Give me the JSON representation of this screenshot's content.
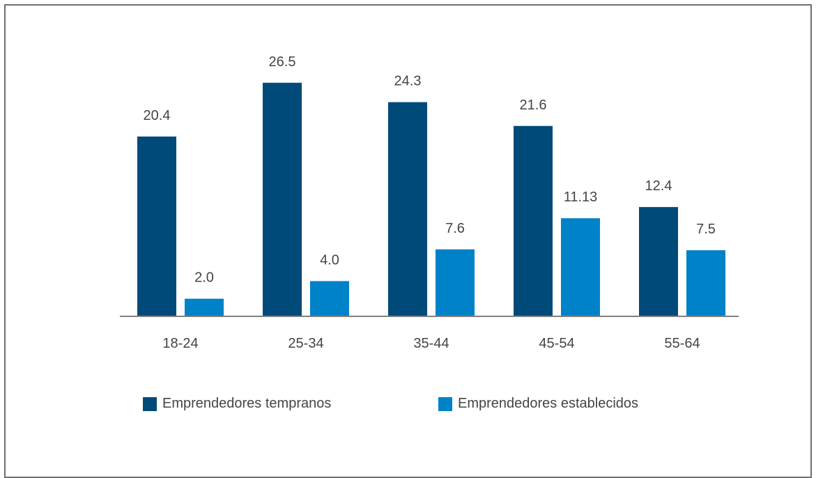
{
  "chart_data": {
    "type": "bar",
    "categories": [
      "18-24",
      "25-34",
      "35-44",
      "45-54",
      "55-64"
    ],
    "series": [
      {
        "name": "Emprendedores tempranos",
        "color": "#004a7a",
        "values": [
          20.4,
          26.5,
          24.3,
          21.6,
          12.4
        ],
        "labels": [
          "20.4",
          "26.5",
          "24.3",
          "21.6",
          "12.4"
        ]
      },
      {
        "name": "Emprendedores establecidos",
        "color": "#0082c8",
        "values": [
          2.0,
          4.0,
          7.6,
          11.13,
          7.5
        ],
        "labels": [
          "2.0",
          "4.0",
          "7.6",
          "11.13",
          "7.5"
        ]
      }
    ],
    "ylim": [
      0,
      30
    ],
    "title": "",
    "xlabel": "",
    "ylabel": "",
    "grid": false,
    "legend_position": "bottom"
  }
}
